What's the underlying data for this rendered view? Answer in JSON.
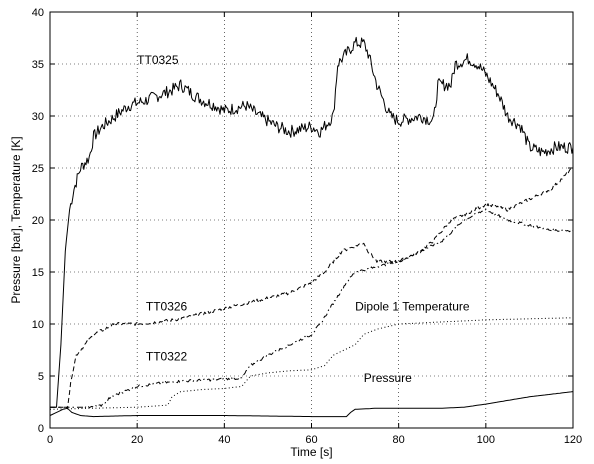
{
  "chart_data": {
    "type": "line",
    "title": "",
    "xlabel": "Time [s]",
    "ylabel": "Pressure [bar], Temperature [K]",
    "xlim": [
      0,
      120
    ],
    "ylim": [
      0,
      40
    ],
    "xticks": [
      "0",
      "20",
      "40",
      "60",
      "80",
      "100",
      "120"
    ],
    "yticks": [
      "0",
      "5",
      "10",
      "15",
      "20",
      "25",
      "30",
      "35",
      "40"
    ],
    "grid": true,
    "legend": "none",
    "annotations": [
      {
        "text": "TT0325",
        "x": 20,
        "y": 35.0
      },
      {
        "text": "TT0326",
        "x": 22,
        "y": 11.3
      },
      {
        "text": "TT0322",
        "x": 22,
        "y": 6.5
      },
      {
        "text": "Dipole 1 Temperature",
        "x": 70,
        "y": 11.3
      },
      {
        "text": "Pressure",
        "x": 72,
        "y": 4.4
      }
    ],
    "series": [
      {
        "style": "solid",
        "noise": 1.2,
        "points": [
          [
            0,
            2
          ],
          [
            1.5,
            2
          ],
          [
            2.5,
            8
          ],
          [
            3.5,
            17
          ],
          [
            4.5,
            21
          ],
          [
            5.5,
            23
          ],
          [
            7,
            25
          ],
          [
            9,
            26
          ],
          [
            10,
            28
          ],
          [
            12,
            29
          ],
          [
            15,
            30
          ],
          [
            18,
            31
          ],
          [
            22,
            31.5
          ],
          [
            25,
            32
          ],
          [
            28,
            32.5
          ],
          [
            30,
            33
          ],
          [
            33,
            32
          ],
          [
            35,
            31.5
          ],
          [
            38,
            31
          ],
          [
            40,
            30.5
          ],
          [
            45,
            31
          ],
          [
            48,
            30
          ],
          [
            52,
            29
          ],
          [
            55,
            28.5
          ],
          [
            60,
            29
          ],
          [
            62,
            28.5
          ],
          [
            64,
            29.5
          ],
          [
            65,
            30
          ],
          [
            66,
            35
          ],
          [
            68,
            36
          ],
          [
            70,
            37
          ],
          [
            72,
            37
          ],
          [
            73,
            36
          ],
          [
            75,
            33
          ],
          [
            78,
            30
          ],
          [
            80,
            29.5
          ],
          [
            85,
            30
          ],
          [
            88,
            29.5
          ],
          [
            89,
            33
          ],
          [
            92,
            33
          ],
          [
            93,
            35
          ],
          [
            96,
            35.5
          ],
          [
            98,
            35
          ],
          [
            100,
            34
          ],
          [
            103,
            32
          ],
          [
            105,
            30
          ],
          [
            108,
            29
          ],
          [
            110,
            27
          ],
          [
            113,
            26.5
          ],
          [
            116,
            27
          ],
          [
            120,
            27
          ]
        ]
      },
      {
        "style": "dashed",
        "noise": 0.3,
        "points": [
          [
            0,
            2
          ],
          [
            4,
            2
          ],
          [
            5,
            5
          ],
          [
            6,
            7
          ],
          [
            8,
            8
          ],
          [
            10,
            9
          ],
          [
            15,
            10
          ],
          [
            20,
            10
          ],
          [
            25,
            10.2
          ],
          [
            30,
            10.5
          ],
          [
            35,
            11
          ],
          [
            40,
            11.5
          ],
          [
            45,
            12
          ],
          [
            50,
            12.5
          ],
          [
            55,
            13
          ],
          [
            60,
            14
          ],
          [
            63,
            15
          ],
          [
            65,
            16
          ],
          [
            67,
            17
          ],
          [
            70,
            17.5
          ],
          [
            72,
            17.8
          ],
          [
            73,
            17
          ],
          [
            75,
            16
          ],
          [
            80,
            16
          ],
          [
            85,
            17
          ],
          [
            88,
            18
          ],
          [
            92,
            20
          ],
          [
            95,
            20.5
          ],
          [
            100,
            21.5
          ],
          [
            105,
            21
          ],
          [
            110,
            22
          ],
          [
            115,
            23
          ],
          [
            120,
            25
          ]
        ]
      },
      {
        "style": "dashdot",
        "noise": 0.25,
        "points": [
          [
            0,
            2
          ],
          [
            8,
            2
          ],
          [
            12,
            2.2
          ],
          [
            14,
            3
          ],
          [
            17,
            3.5
          ],
          [
            20,
            4
          ],
          [
            25,
            4.3
          ],
          [
            30,
            4.5
          ],
          [
            35,
            4.6
          ],
          [
            40,
            4.7
          ],
          [
            44,
            4.8
          ],
          [
            46,
            6
          ],
          [
            50,
            7
          ],
          [
            55,
            8
          ],
          [
            60,
            9
          ],
          [
            62,
            10
          ],
          [
            65,
            12
          ],
          [
            68,
            14
          ],
          [
            70,
            15
          ],
          [
            75,
            15.5
          ],
          [
            80,
            16
          ],
          [
            85,
            17
          ],
          [
            90,
            18
          ],
          [
            95,
            20
          ],
          [
            100,
            21
          ],
          [
            105,
            20
          ],
          [
            110,
            19.5
          ],
          [
            115,
            19
          ],
          [
            120,
            19
          ]
        ]
      },
      {
        "style": "dotted",
        "noise": 0,
        "points": [
          [
            0,
            1.8
          ],
          [
            20,
            2
          ],
          [
            27,
            2.2
          ],
          [
            28,
            3
          ],
          [
            30,
            3.5
          ],
          [
            35,
            3.7
          ],
          [
            40,
            3.8
          ],
          [
            44,
            4
          ],
          [
            46,
            5
          ],
          [
            50,
            5.3
          ],
          [
            55,
            5.5
          ],
          [
            60,
            5.6
          ],
          [
            63,
            6
          ],
          [
            65,
            7
          ],
          [
            70,
            8
          ],
          [
            72,
            9
          ],
          [
            75,
            9.5
          ],
          [
            80,
            10
          ],
          [
            90,
            10.2
          ],
          [
            100,
            10.4
          ],
          [
            110,
            10.5
          ],
          [
            120,
            10.6
          ]
        ]
      },
      {
        "style": "solid",
        "noise": 0,
        "points": [
          [
            0,
            1.2
          ],
          [
            2,
            1.6
          ],
          [
            3,
            1.8
          ],
          [
            4,
            1.9
          ],
          [
            5,
            1.5
          ],
          [
            7,
            1.2
          ],
          [
            10,
            1.1
          ],
          [
            20,
            1.2
          ],
          [
            40,
            1.2
          ],
          [
            60,
            1.1
          ],
          [
            68,
            1.1
          ],
          [
            69,
            1.5
          ],
          [
            70,
            1.8
          ],
          [
            75,
            1.9
          ],
          [
            80,
            1.9
          ],
          [
            90,
            1.9
          ],
          [
            95,
            2.0
          ],
          [
            100,
            2.3
          ],
          [
            110,
            3.0
          ],
          [
            120,
            3.5
          ]
        ]
      }
    ]
  }
}
